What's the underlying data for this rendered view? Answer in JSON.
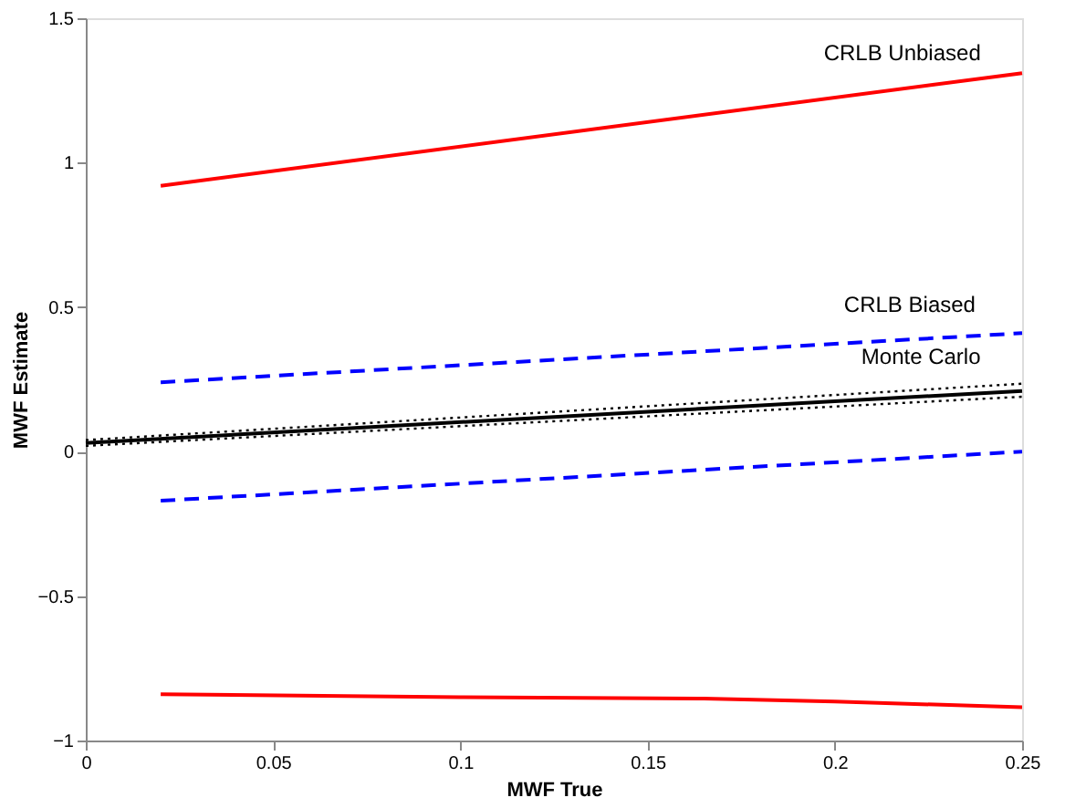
{
  "chart_data": {
    "type": "line",
    "xlabel": "MWF True",
    "ylabel": "MWF Estimate",
    "xlim": [
      0,
      0.25
    ],
    "ylim": [
      -1,
      1.5
    ],
    "xticks": [
      0,
      0.05,
      0.1,
      0.15,
      0.2,
      0.25
    ],
    "yticks": [
      -1,
      -0.5,
      0,
      0.5,
      1,
      1.5
    ],
    "grid": false,
    "series": [
      {
        "color": "#ff0000",
        "line_style": "solid",
        "x": [
          0.02,
          0.25
        ],
        "values": [
          0.92,
          1.31
        ]
      },
      {
        "color": "#ff0000",
        "line_style": "solid",
        "x": [
          0.02,
          0.1,
          0.165,
          0.2,
          0.25
        ],
        "values": [
          -0.84,
          -0.85,
          -0.855,
          -0.865,
          -0.885
        ]
      },
      {
        "color": "#0000ff",
        "line_style": "dashed",
        "x": [
          0.02,
          0.25
        ],
        "values": [
          0.24,
          0.41
        ]
      },
      {
        "color": "#0000ff",
        "line_style": "dashed",
        "x": [
          0.02,
          0.25
        ],
        "values": [
          -0.17,
          0.0
        ]
      },
      {
        "color": "#000000",
        "line_style": "solid",
        "x": [
          0,
          0.25
        ],
        "values": [
          0.03,
          0.21
        ]
      },
      {
        "color": "#000000",
        "line_style": "dotted",
        "x": [
          0,
          0.25
        ],
        "values": [
          0.04,
          0.235
        ]
      },
      {
        "color": "#000000",
        "line_style": "dotted",
        "x": [
          0,
          0.25
        ],
        "values": [
          0.02,
          0.19
        ]
      }
    ],
    "annotations": [
      {
        "text": "CRLB Unbiased",
        "x": 0.218,
        "y": 1.26
      },
      {
        "text": "CRLB Biased",
        "x": 0.22,
        "y": 0.39
      },
      {
        "text": "Monte Carlo",
        "x": 0.223,
        "y": 0.21
      }
    ]
  }
}
